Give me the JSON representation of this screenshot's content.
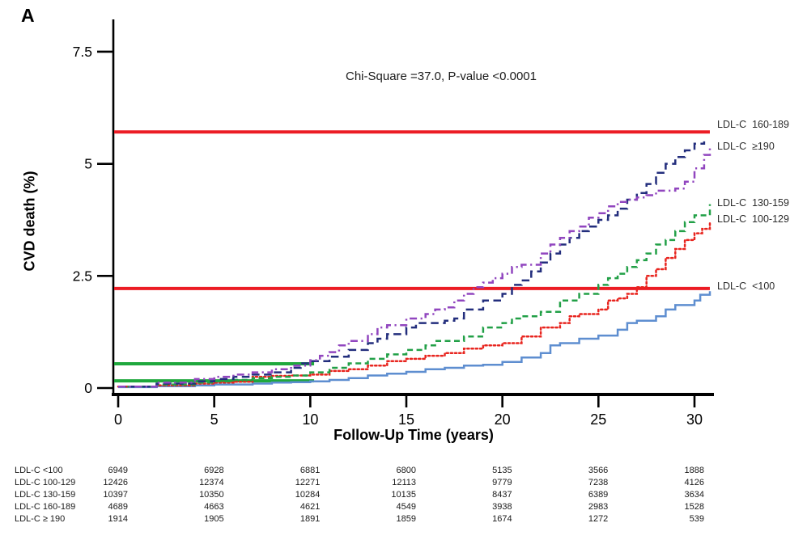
{
  "figure": {
    "panel_label": "A",
    "annotation": "Chi-Square =37.0, P-value <0.0001",
    "background": "#ffffff"
  },
  "chart_data": {
    "type": "line",
    "subtype": "cumulative-incidence-step-curves",
    "title": "",
    "annotation": "Chi-Square =37.0, P-value <0.0001",
    "xlabel": "Follow-Up Time (years)",
    "ylabel": "CVD death (%)",
    "xlim": [
      0,
      31
    ],
    "ylim": [
      0,
      7.9
    ],
    "x_ticks": [
      0,
      5,
      10,
      15,
      20,
      25,
      30
    ],
    "y_ticks": [
      0,
      2.5,
      5,
      7.5
    ],
    "y_tick_labels": [
      "0",
      "2.5",
      "5",
      "7.5"
    ],
    "grid": false,
    "legend_position": "right-edge-labels",
    "series": [
      {
        "id": "ldl-lt-100",
        "name": "LDL-C <100",
        "color": "#5e8ed0",
        "style": "solid",
        "points": [
          [
            0,
            0.02
          ],
          [
            2,
            0.04
          ],
          [
            4,
            0.06
          ],
          [
            5,
            0.08
          ],
          [
            6,
            0.08
          ],
          [
            7,
            0.1
          ],
          [
            8,
            0.12
          ],
          [
            9,
            0.13
          ],
          [
            10,
            0.15
          ],
          [
            11,
            0.18
          ],
          [
            12,
            0.22
          ],
          [
            13,
            0.28
          ],
          [
            14,
            0.32
          ],
          [
            15,
            0.36
          ],
          [
            16,
            0.42
          ],
          [
            17,
            0.45
          ],
          [
            18,
            0.5
          ],
          [
            19,
            0.52
          ],
          [
            20,
            0.58
          ],
          [
            21,
            0.68
          ],
          [
            22,
            0.78
          ],
          [
            22.5,
            0.95
          ],
          [
            23,
            1.0
          ],
          [
            24,
            1.1
          ],
          [
            25,
            1.17
          ],
          [
            26,
            1.3
          ],
          [
            26.5,
            1.45
          ],
          [
            27,
            1.5
          ],
          [
            28,
            1.6
          ],
          [
            28.5,
            1.75
          ],
          [
            29,
            1.85
          ],
          [
            30,
            1.95
          ],
          [
            30.3,
            2.08
          ],
          [
            30.8,
            2.16
          ]
        ]
      },
      {
        "id": "ldl-100-129",
        "name": "LDL-C 100-129",
        "color": "#e8251f",
        "style": "dotted",
        "points": [
          [
            0,
            0.03
          ],
          [
            2,
            0.06
          ],
          [
            4,
            0.1
          ],
          [
            5,
            0.12
          ],
          [
            6,
            0.14
          ],
          [
            7,
            0.25
          ],
          [
            8,
            0.27
          ],
          [
            9,
            0.28
          ],
          [
            10,
            0.3
          ],
          [
            11,
            0.38
          ],
          [
            12,
            0.42
          ],
          [
            13,
            0.5
          ],
          [
            14,
            0.6
          ],
          [
            15,
            0.65
          ],
          [
            16,
            0.72
          ],
          [
            17,
            0.78
          ],
          [
            18,
            0.88
          ],
          [
            19,
            0.95
          ],
          [
            20,
            1.0
          ],
          [
            21,
            1.15
          ],
          [
            22,
            1.35
          ],
          [
            23,
            1.45
          ],
          [
            23.5,
            1.6
          ],
          [
            24,
            1.65
          ],
          [
            25,
            1.75
          ],
          [
            25.5,
            1.95
          ],
          [
            26,
            2.0
          ],
          [
            26.5,
            2.1
          ],
          [
            27,
            2.25
          ],
          [
            27.5,
            2.5
          ],
          [
            28,
            2.65
          ],
          [
            28.5,
            2.9
          ],
          [
            29,
            3.1
          ],
          [
            29.5,
            3.3
          ],
          [
            30,
            3.45
          ],
          [
            30.4,
            3.55
          ],
          [
            30.8,
            3.7
          ]
        ]
      },
      {
        "id": "ldl-130-159",
        "name": "LDL-C 130-159",
        "color": "#22a047",
        "style": "dashed",
        "points": [
          [
            0,
            0.03
          ],
          [
            2,
            0.08
          ],
          [
            4,
            0.12
          ],
          [
            5,
            0.15
          ],
          [
            6,
            0.18
          ],
          [
            7,
            0.22
          ],
          [
            8,
            0.25
          ],
          [
            9,
            0.28
          ],
          [
            10,
            0.35
          ],
          [
            11,
            0.45
          ],
          [
            12,
            0.55
          ],
          [
            13,
            0.65
          ],
          [
            14,
            0.75
          ],
          [
            15,
            0.85
          ],
          [
            16,
            0.95
          ],
          [
            16.5,
            1.05
          ],
          [
            17,
            1.05
          ],
          [
            18,
            1.15
          ],
          [
            19,
            1.35
          ],
          [
            20,
            1.45
          ],
          [
            20.5,
            1.55
          ],
          [
            21,
            1.6
          ],
          [
            22,
            1.7
          ],
          [
            23,
            1.95
          ],
          [
            24,
            2.1
          ],
          [
            25,
            2.3
          ],
          [
            25.5,
            2.45
          ],
          [
            26,
            2.55
          ],
          [
            26.5,
            2.7
          ],
          [
            27,
            2.85
          ],
          [
            27.5,
            3.0
          ],
          [
            28,
            3.2
          ],
          [
            28.5,
            3.3
          ],
          [
            29,
            3.5
          ],
          [
            29.5,
            3.7
          ],
          [
            30,
            3.85
          ],
          [
            30.8,
            4.1
          ]
        ]
      },
      {
        "id": "ldl-160-189",
        "name": "LDL-C 160-189",
        "color": "#232e7d",
        "style": "longdash",
        "points": [
          [
            0,
            0.03
          ],
          [
            2,
            0.1
          ],
          [
            4,
            0.15
          ],
          [
            5,
            0.2
          ],
          [
            6,
            0.25
          ],
          [
            7,
            0.3
          ],
          [
            8,
            0.35
          ],
          [
            9,
            0.45
          ],
          [
            9.5,
            0.55
          ],
          [
            10,
            0.6
          ],
          [
            11,
            0.7
          ],
          [
            12,
            0.85
          ],
          [
            13,
            1.0
          ],
          [
            13.5,
            1.1
          ],
          [
            14,
            1.2
          ],
          [
            15,
            1.35
          ],
          [
            15.5,
            1.45
          ],
          [
            16,
            1.45
          ],
          [
            17,
            1.5
          ],
          [
            17.5,
            1.55
          ],
          [
            18,
            1.75
          ],
          [
            19,
            1.95
          ],
          [
            20,
            2.1
          ],
          [
            20.5,
            2.3
          ],
          [
            21,
            2.4
          ],
          [
            21.5,
            2.6
          ],
          [
            22,
            2.8
          ],
          [
            22.5,
            3.0
          ],
          [
            23,
            3.2
          ],
          [
            23.5,
            3.35
          ],
          [
            24,
            3.5
          ],
          [
            24.5,
            3.6
          ],
          [
            25,
            3.75
          ],
          [
            25.5,
            3.85
          ],
          [
            26,
            4.0
          ],
          [
            26.5,
            4.2
          ],
          [
            27,
            4.35
          ],
          [
            27.5,
            4.55
          ],
          [
            28,
            4.8
          ],
          [
            28.5,
            5.0
          ],
          [
            29,
            5.15
          ],
          [
            29.5,
            5.3
          ],
          [
            30,
            5.45
          ],
          [
            30.5,
            5.5
          ]
        ]
      },
      {
        "id": "ldl-ge-190",
        "name": "LDL-C ≥190",
        "color": "#9146bf",
        "style": "dashdot",
        "points": [
          [
            0,
            0.03
          ],
          [
            2,
            0.12
          ],
          [
            4,
            0.2
          ],
          [
            5,
            0.25
          ],
          [
            6,
            0.3
          ],
          [
            7,
            0.35
          ],
          [
            8,
            0.42
          ],
          [
            9,
            0.5
          ],
          [
            10,
            0.62
          ],
          [
            10.5,
            0.72
          ],
          [
            11,
            0.8
          ],
          [
            11.5,
            0.95
          ],
          [
            12,
            1.05
          ],
          [
            13,
            1.2
          ],
          [
            13.5,
            1.35
          ],
          [
            14,
            1.4
          ],
          [
            15,
            1.55
          ],
          [
            16,
            1.65
          ],
          [
            16.5,
            1.75
          ],
          [
            17,
            1.8
          ],
          [
            17.5,
            1.95
          ],
          [
            18,
            2.1
          ],
          [
            18.5,
            2.25
          ],
          [
            19,
            2.35
          ],
          [
            19.5,
            2.45
          ],
          [
            20,
            2.55
          ],
          [
            20.5,
            2.7
          ],
          [
            21,
            2.75
          ],
          [
            22,
            3.0
          ],
          [
            22.5,
            3.2
          ],
          [
            23,
            3.35
          ],
          [
            23.5,
            3.5
          ],
          [
            24,
            3.6
          ],
          [
            24.5,
            3.8
          ],
          [
            25,
            3.9
          ],
          [
            25.5,
            4.05
          ],
          [
            26,
            4.15
          ],
          [
            26.5,
            4.2
          ],
          [
            27,
            4.25
          ],
          [
            27.5,
            4.3
          ],
          [
            28,
            4.4
          ],
          [
            28.5,
            4.4
          ],
          [
            29,
            4.45
          ],
          [
            29.5,
            4.6
          ],
          [
            30,
            4.9
          ],
          [
            30.5,
            5.2
          ],
          [
            30.8,
            5.4
          ]
        ]
      }
    ],
    "reference_lines": [
      {
        "id": "red-upper",
        "value_pct": 5.71,
        "x_from": 0,
        "x_to": 30.8,
        "color": "#ec1c24"
      },
      {
        "id": "red-lower",
        "value_pct": 2.22,
        "x_from": 0,
        "x_to": 30.8,
        "color": "#ec1c24"
      },
      {
        "id": "green-upper",
        "value_pct": 0.54,
        "x_from": 0,
        "x_to": 10.2,
        "color": "#1fa83d"
      },
      {
        "id": "green-lower",
        "value_pct": 0.16,
        "x_from": 0,
        "x_to": 10.2,
        "color": "#1fa83d"
      }
    ],
    "right_labels": [
      {
        "text": "LDL-C  160-189",
        "series_id": "ldl-160-189",
        "y_pct": 5.86
      },
      {
        "text": "LDL-C  ≥190",
        "series_id": "ldl-ge-190",
        "y_pct": 5.37
      },
      {
        "text": "LDL-C  130-159",
        "series_id": "ldl-130-159",
        "y_pct": 4.11
      },
      {
        "text": "LDL-C  100-129",
        "series_id": "ldl-100-129",
        "y_pct": 3.75
      },
      {
        "text": "LDL-C  <100",
        "series_id": "ldl-lt-100",
        "y_pct": 2.25
      }
    ],
    "risk_table": {
      "time_points": [
        0,
        5,
        10,
        15,
        20,
        25,
        30
      ],
      "rows": [
        {
          "label": "LDL-C <100",
          "counts": [
            6949,
            6928,
            6881,
            6800,
            5135,
            3566,
            1888
          ]
        },
        {
          "label": "LDL-C 100-129",
          "counts": [
            12426,
            12374,
            12271,
            12113,
            9779,
            7238,
            4126
          ]
        },
        {
          "label": "LDL-C 130-159",
          "counts": [
            10397,
            10350,
            10284,
            10135,
            8437,
            6389,
            3634
          ]
        },
        {
          "label": "LDL-C 160-189",
          "counts": [
            4689,
            4663,
            4621,
            4549,
            3938,
            2983,
            1528
          ]
        },
        {
          "label": "LDL-C ≥ 190",
          "counts": [
            1914,
            1905,
            1891,
            1859,
            1674,
            1272,
            539
          ]
        }
      ]
    }
  }
}
